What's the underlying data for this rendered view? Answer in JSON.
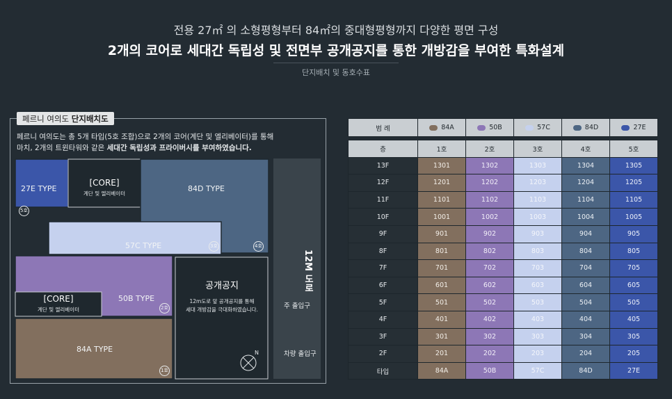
{
  "header": {
    "line1": "전용 27㎡ 의 소형평형부터 84㎡의 중대형평형까지 다양한 평면 구성",
    "line2": "2개의 코어로 세대간 독립성 및 전면부 공개공지를 통한 개방감을 부여한 특화설계",
    "line3": "단지배치 및 동호수표"
  },
  "site": {
    "tag_prefix": "페르니 여의도 ",
    "tag_bold": "단지배치도",
    "desc_line1": "페르니 여의도는 총 5개 타입(5호 조합)으로 2개의 코어(계단 및 엘리베이터)를 통해",
    "desc_line2_a": "마치, 2개의 트윈타워와 같은 ",
    "desc_line2_b": "세대간 독립성과 프라이버시를 부여하였습니다.",
    "units": [
      {
        "label": "27E TYPE",
        "num": "5호",
        "color": "#3b56a9"
      },
      {
        "label": "84D TYPE",
        "num": "4호",
        "color": "#4d6683"
      },
      {
        "label": "57C TYPE",
        "num": "3호",
        "color": "#c5d1ee"
      },
      {
        "label": "50B TYPE",
        "num": "2호",
        "color": "#8d77b6"
      },
      {
        "label": "84A TYPE",
        "num": "1호",
        "color": "#826f5e"
      }
    ],
    "core1_title": "[CORE]",
    "core1_sub": "계단 및 엘리베이터",
    "core2_title": "[CORE]",
    "core2_sub": "계단 및 엘리베이터",
    "open_title": "공개공지",
    "open_sub1": "12m도로 앞 공개공지를 통해",
    "open_sub2": "세대 개방감을 극대화하였습니다.",
    "road_label": "12M 도로",
    "main_entry": "주 출입구",
    "car_entry": "차량 출입구"
  },
  "table": {
    "legend_title": "범 례",
    "legend": [
      {
        "name": "84A",
        "color": "#826f5e"
      },
      {
        "name": "50B",
        "color": "#8d77b6"
      },
      {
        "name": "57C",
        "color": "#c5d1ee"
      },
      {
        "name": "84D",
        "color": "#4d6683"
      },
      {
        "name": "27E",
        "color": "#3b56a9"
      }
    ],
    "header": [
      "층",
      "1호",
      "2호",
      "3호",
      "4호",
      "5호"
    ],
    "rows": [
      [
        "13F",
        "1301",
        "1302",
        "1303",
        "1304",
        "1305"
      ],
      [
        "12F",
        "1201",
        "1202",
        "1203",
        "1204",
        "1205"
      ],
      [
        "11F",
        "1101",
        "1102",
        "1103",
        "1104",
        "1105"
      ],
      [
        "10F",
        "1001",
        "1002",
        "1003",
        "1004",
        "1005"
      ],
      [
        "9F",
        "901",
        "902",
        "903",
        "904",
        "905"
      ],
      [
        "8F",
        "801",
        "802",
        "803",
        "804",
        "805"
      ],
      [
        "7F",
        "701",
        "702",
        "703",
        "704",
        "705"
      ],
      [
        "6F",
        "601",
        "602",
        "603",
        "604",
        "605"
      ],
      [
        "5F",
        "501",
        "502",
        "503",
        "504",
        "505"
      ],
      [
        "4F",
        "401",
        "402",
        "403",
        "404",
        "405"
      ],
      [
        "3F",
        "301",
        "302",
        "303",
        "304",
        "305"
      ],
      [
        "2F",
        "201",
        "202",
        "203",
        "204",
        "205"
      ],
      [
        "타입",
        "84A",
        "50B",
        "57C",
        "84D",
        "27E"
      ]
    ]
  }
}
